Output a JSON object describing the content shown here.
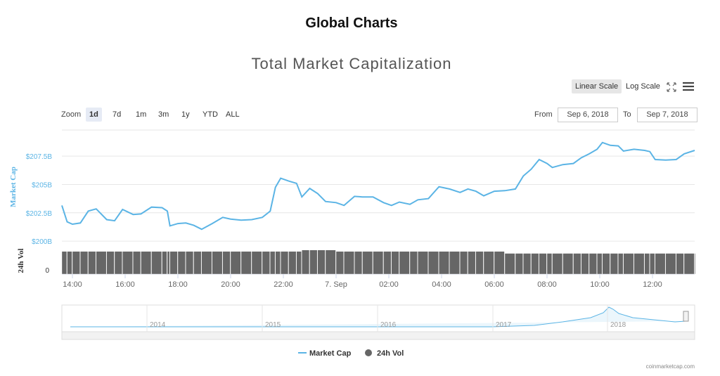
{
  "header": {
    "title": "Global Charts"
  },
  "controls": {
    "scale_buttons": [
      "Linear Scale",
      "Log Scale"
    ],
    "zoom_label": "Zoom",
    "zoom_buttons": [
      "1d",
      "7d",
      "1m",
      "3m",
      "1y",
      "YTD",
      "ALL"
    ],
    "from_label": "From",
    "from_value": "Sep 6, 2018",
    "to_label": "To",
    "to_value": "Sep 7, 2018"
  },
  "navigator": {
    "labels": [
      "2014",
      "2015",
      "2016",
      "2017",
      "2018"
    ]
  },
  "credit": "coinmarketcap.com",
  "chart_data": {
    "type": "line",
    "title": "Total Market Capitalization",
    "y_label": "Market Cap",
    "y2_label": "24h Vol",
    "x": [
      13.6,
      13.8,
      14.0,
      14.3,
      14.6,
      14.9,
      15.3,
      15.6,
      15.9,
      16.3,
      16.6,
      17.0,
      17.4,
      17.6,
      17.7,
      18.0,
      18.3,
      18.6,
      18.9,
      19.3,
      19.7,
      20.0,
      20.4,
      20.8,
      21.2,
      21.5,
      21.7,
      21.9,
      22.2,
      22.5,
      22.7,
      23.0,
      23.3,
      23.6,
      24.0,
      24.3,
      24.7,
      25.0,
      25.4,
      25.8,
      26.1,
      26.4,
      26.8,
      27.1,
      27.5,
      27.9,
      28.3,
      28.7,
      29.0,
      29.3,
      29.6,
      30.0,
      30.4,
      30.8,
      31.1,
      31.4,
      31.7,
      32.0,
      32.2,
      32.6,
      33.0,
      33.3,
      33.6,
      33.9,
      34.1,
      34.4,
      34.7,
      34.9,
      35.3,
      35.7,
      35.9,
      36.1,
      36.5,
      36.9,
      37.2,
      37.6
    ],
    "series": [
      {
        "name": "Market Cap",
        "color": "#5bb4e5",
        "values": [
          203.15,
          201.7,
          201.5,
          201.6,
          202.65,
          202.85,
          201.9,
          201.8,
          202.8,
          202.35,
          202.4,
          203.0,
          202.95,
          202.65,
          201.35,
          201.55,
          201.6,
          201.4,
          201.05,
          201.55,
          202.1,
          201.95,
          201.85,
          201.9,
          202.1,
          202.65,
          204.75,
          205.55,
          205.3,
          205.1,
          203.9,
          204.65,
          204.2,
          203.5,
          203.4,
          203.15,
          203.95,
          203.9,
          203.9,
          203.4,
          203.15,
          203.45,
          203.25,
          203.65,
          203.75,
          204.8,
          204.6,
          204.3,
          204.6,
          204.4,
          204.0,
          204.4,
          204.45,
          204.6,
          205.75,
          206.35,
          207.2,
          206.85,
          206.5,
          206.75,
          206.85,
          207.35,
          207.7,
          208.1,
          208.7,
          208.45,
          208.4,
          207.95,
          208.1,
          208.0,
          207.9,
          207.2,
          207.15,
          207.2,
          207.7,
          208.0
        ]
      },
      {
        "name": "24h Vol",
        "color": "#666666",
        "axis": "y2",
        "values": [
          34,
          34,
          34,
          34,
          34,
          34,
          34,
          34,
          34,
          34,
          34,
          34,
          34,
          34,
          34,
          34,
          34,
          34,
          34,
          34,
          34,
          34,
          34,
          34,
          34,
          34,
          34,
          34,
          34,
          34,
          36,
          36,
          36,
          36,
          34,
          34,
          34,
          34,
          34,
          34,
          34,
          34,
          34,
          34,
          34,
          34,
          34,
          34,
          34,
          34,
          34,
          34,
          31,
          31,
          31,
          31,
          31,
          31,
          31,
          31,
          31,
          31,
          31,
          31,
          31,
          31,
          31,
          31,
          31,
          31,
          31,
          31,
          31,
          31,
          31,
          31
        ]
      }
    ],
    "xlim": [
      13.6,
      37.6
    ],
    "xticks": [
      {
        "value": 14,
        "label": "14:00"
      },
      {
        "value": 16,
        "label": "16:00"
      },
      {
        "value": 18,
        "label": "18:00"
      },
      {
        "value": 20,
        "label": "20:00"
      },
      {
        "value": 22,
        "label": "22:00"
      },
      {
        "value": 24,
        "label": "7. Sep"
      },
      {
        "value": 26,
        "label": "02:00"
      },
      {
        "value": 28,
        "label": "04:00"
      },
      {
        "value": 30,
        "label": "06:00"
      },
      {
        "value": 32,
        "label": "08:00"
      },
      {
        "value": 34,
        "label": "10:00"
      },
      {
        "value": 36,
        "label": "12:00"
      }
    ],
    "ylim": [
      199.7,
      209.8
    ],
    "yticks": [
      {
        "value": 200,
        "label": "$200B"
      },
      {
        "value": 202.5,
        "label": "$202.5B"
      },
      {
        "value": 205,
        "label": "$205B"
      },
      {
        "value": 207.5,
        "label": "$207.5B"
      }
    ],
    "y2lim": [
      0,
      40
    ],
    "y2ticks": [
      0
    ],
    "grid": true,
    "legend": "bottom"
  }
}
